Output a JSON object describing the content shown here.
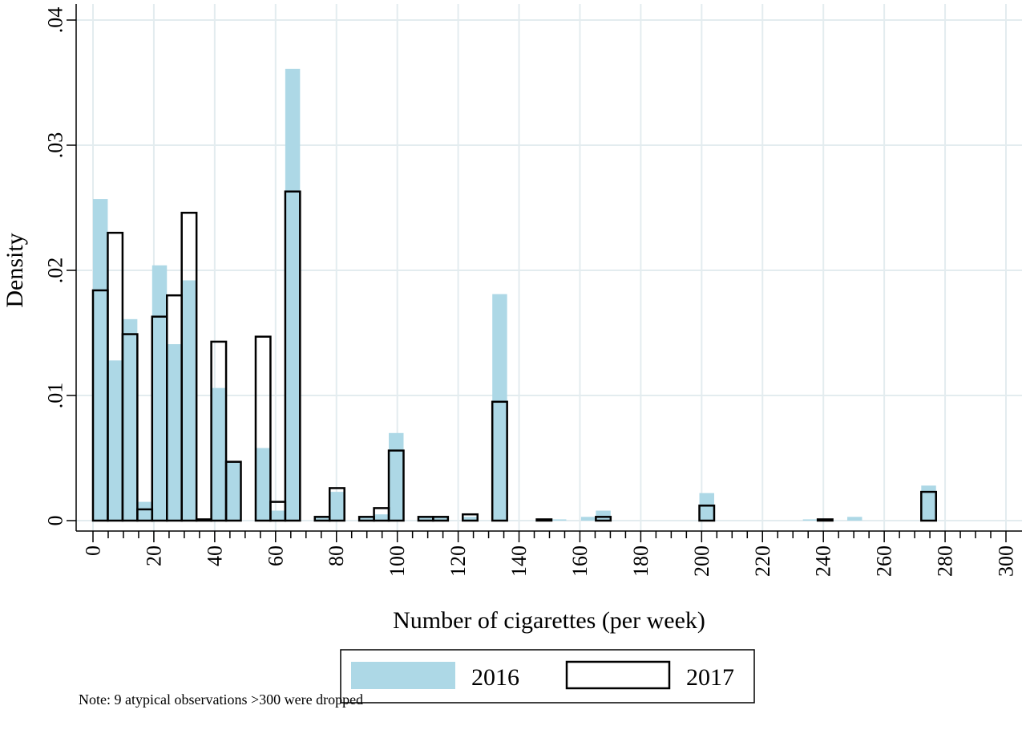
{
  "chart_data": {
    "type": "bar",
    "title": "",
    "xlabel": "Number of cigarettes (per week)",
    "ylabel": "Density",
    "xlim": [
      0,
      300
    ],
    "ylim": [
      0,
      0.04
    ],
    "bin_width": 4.86,
    "x_ticks": [
      {
        "value": 0,
        "label": "0"
      },
      {
        "value": 20,
        "label": "20"
      },
      {
        "value": 40,
        "label": "40"
      },
      {
        "value": 60,
        "label": "60"
      },
      {
        "value": 80,
        "label": "80"
      },
      {
        "value": 100,
        "label": "100"
      },
      {
        "value": 120,
        "label": "120"
      },
      {
        "value": 140,
        "label": "140"
      },
      {
        "value": 160,
        "label": "160"
      },
      {
        "value": 180,
        "label": "180"
      },
      {
        "value": 200,
        "label": "200"
      },
      {
        "value": 220,
        "label": "220"
      },
      {
        "value": 240,
        "label": "240"
      },
      {
        "value": 260,
        "label": "260"
      },
      {
        "value": 280,
        "label": "280"
      },
      {
        "value": 300,
        "label": "300"
      }
    ],
    "y_ticks": [
      {
        "value": 0,
        "label": "0"
      },
      {
        "value": 0.01,
        "label": ".01"
      },
      {
        "value": 0.02,
        "label": ".02"
      },
      {
        "value": 0.03,
        "label": ".03"
      },
      {
        "value": 0.04,
        "label": ".04"
      }
    ],
    "grid": true,
    "legend_position": "bottom",
    "series": [
      {
        "name": "2016",
        "style": "filled",
        "color": "#add8e6",
        "bars": [
          {
            "x": 0,
            "y": 0.0257
          },
          {
            "x": 4.86,
            "y": 0.0128
          },
          {
            "x": 9.72,
            "y": 0.0161
          },
          {
            "x": 14.58,
            "y": 0.0015
          },
          {
            "x": 19.44,
            "y": 0.0204
          },
          {
            "x": 24.3,
            "y": 0.0141
          },
          {
            "x": 29.16,
            "y": 0.0192
          },
          {
            "x": 34.02,
            "y": 0.0001
          },
          {
            "x": 38.88,
            "y": 0.0106
          },
          {
            "x": 43.74,
            "y": 0.0047
          },
          {
            "x": 53.46,
            "y": 0.0058
          },
          {
            "x": 58.32,
            "y": 0.0008
          },
          {
            "x": 63.18,
            "y": 0.0361
          },
          {
            "x": 72.9,
            "y": 0.0003
          },
          {
            "x": 77.76,
            "y": 0.0023
          },
          {
            "x": 87.48,
            "y": 0.0003
          },
          {
            "x": 92.34,
            "y": 0.0005
          },
          {
            "x": 97.2,
            "y": 0.007
          },
          {
            "x": 106.92,
            "y": 0.0003
          },
          {
            "x": 111.78,
            "y": 0.0003
          },
          {
            "x": 121.5,
            "y": 0.0003
          },
          {
            "x": 131.22,
            "y": 0.0181
          },
          {
            "x": 150.66,
            "y": 0.0001
          },
          {
            "x": 160.38,
            "y": 0.0003
          },
          {
            "x": 165.24,
            "y": 0.0008
          },
          {
            "x": 199.26,
            "y": 0.0022
          },
          {
            "x": 233.28,
            "y": 0.0001
          },
          {
            "x": 247.86,
            "y": 0.0003
          },
          {
            "x": 272.16,
            "y": 0.0028
          }
        ]
      },
      {
        "name": "2017",
        "style": "outline",
        "color": "#000000",
        "bars": [
          {
            "x": 0,
            "y": 0.0184
          },
          {
            "x": 4.86,
            "y": 0.023
          },
          {
            "x": 9.72,
            "y": 0.0149
          },
          {
            "x": 14.58,
            "y": 0.0009
          },
          {
            "x": 19.44,
            "y": 0.0163
          },
          {
            "x": 24.3,
            "y": 0.018
          },
          {
            "x": 29.16,
            "y": 0.0246
          },
          {
            "x": 34.02,
            "y": 0.0001
          },
          {
            "x": 38.88,
            "y": 0.0143
          },
          {
            "x": 43.74,
            "y": 0.0047
          },
          {
            "x": 53.46,
            "y": 0.0147
          },
          {
            "x": 58.32,
            "y": 0.0015
          },
          {
            "x": 63.18,
            "y": 0.0263
          },
          {
            "x": 72.9,
            "y": 0.0003
          },
          {
            "x": 77.76,
            "y": 0.0026
          },
          {
            "x": 87.48,
            "y": 0.0003
          },
          {
            "x": 92.34,
            "y": 0.001
          },
          {
            "x": 97.2,
            "y": 0.0056
          },
          {
            "x": 106.92,
            "y": 0.0003
          },
          {
            "x": 111.78,
            "y": 0.0003
          },
          {
            "x": 121.5,
            "y": 0.0005
          },
          {
            "x": 131.22,
            "y": 0.0095
          },
          {
            "x": 145.8,
            "y": 0.0001
          },
          {
            "x": 165.24,
            "y": 0.0003
          },
          {
            "x": 199.26,
            "y": 0.0012
          },
          {
            "x": 238.14,
            "y": 0.0001
          },
          {
            "x": 272.16,
            "y": 0.0023
          }
        ]
      }
    ],
    "note": "Note: 9 atypical observations >300 were dropped"
  }
}
